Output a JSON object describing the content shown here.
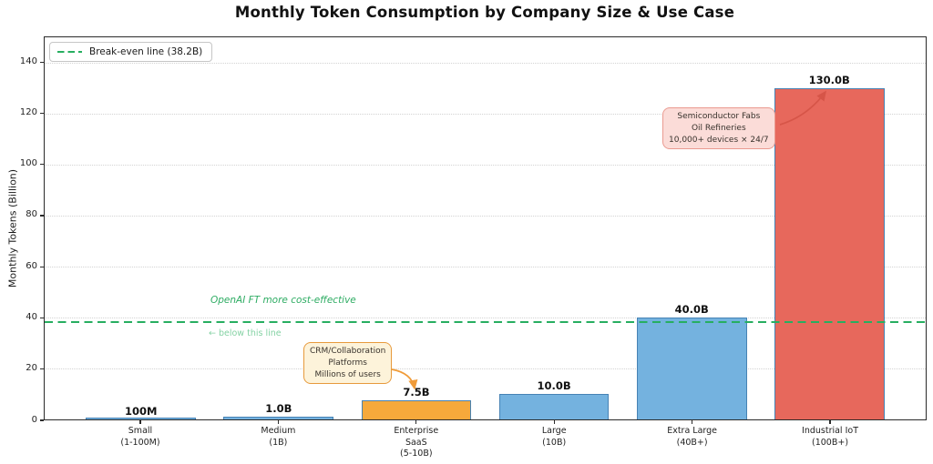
{
  "title": "Monthly Token Consumption by Company Size & Use Case",
  "legend": {
    "break_even_label": "Break-even line (38.2B)"
  },
  "annotations": {
    "cost_effective_text": "OpenAI FT more cost-effective",
    "below_line_text": "← below this line",
    "crm_box_lines": [
      "CRM/Collaboration",
      "Platforms",
      "Millions of users"
    ],
    "iot_box_lines": [
      "Semiconductor Fabs",
      "Oil Refineries",
      "10,000+ devices × 24/7"
    ]
  },
  "chart_data": {
    "type": "bar",
    "title": "Monthly Token Consumption by Company Size & Use Case",
    "xlabel": "",
    "ylabel": "Monthly Tokens (Billion)",
    "ylim": [
      0,
      150
    ],
    "xlim": [
      -0.7,
      5.7
    ],
    "yticks": [
      0,
      20,
      40,
      60,
      80,
      100,
      120,
      140
    ],
    "grid": "horizontal-dotted",
    "legend_position": "upper-left",
    "categories": [
      "Small (1-100M)",
      "Medium (1B)",
      "Enterprise SaaS (5-10B)",
      "Large (10B)",
      "Extra Large (40B+)",
      "Industrial IoT (100B+)"
    ],
    "category_label_lines": [
      [
        "Small",
        "(1-100M)"
      ],
      [
        "Medium",
        "(1B)"
      ],
      [
        "Enterprise",
        "SaaS",
        "(5-10B)"
      ],
      [
        "Large",
        "(10B)"
      ],
      [
        "Extra Large",
        "(40B+)"
      ],
      [
        "Industrial IoT",
        "(100B+)"
      ]
    ],
    "values_billion": [
      0.1,
      1.0,
      7.5,
      10.0,
      40.0,
      130.0
    ],
    "value_labels": [
      "100M",
      "1.0B",
      "7.5B",
      "10.0B",
      "40.0B",
      "130.0B"
    ],
    "bar_width_fraction": 0.8,
    "bar_colors": [
      "#74b2df",
      "#74b2df",
      "#f6a93b",
      "#74b2df",
      "#74b2df",
      "#e7685c"
    ],
    "bar_edge_color": "#4682b4",
    "break_even_line": {
      "value": 38.2,
      "color": "#27ae60",
      "style": "dashed",
      "label": "Break-even line (38.2B)"
    }
  },
  "colors": {
    "accent_green": "#27ae60",
    "light_green": "#85d2a4",
    "crm_box_bg": "#fdf3da",
    "crm_box_border": "#e79a3c",
    "iot_box_bg": "#fbdcd8",
    "iot_box_border": "#ea9a90",
    "arrow_orange": "#f09b38",
    "arrow_red": "#d65548",
    "bar_blue": "#74b2df",
    "bar_orange": "#f6a93b",
    "bar_red": "#e7685c",
    "bar_edge": "#4682b4"
  }
}
